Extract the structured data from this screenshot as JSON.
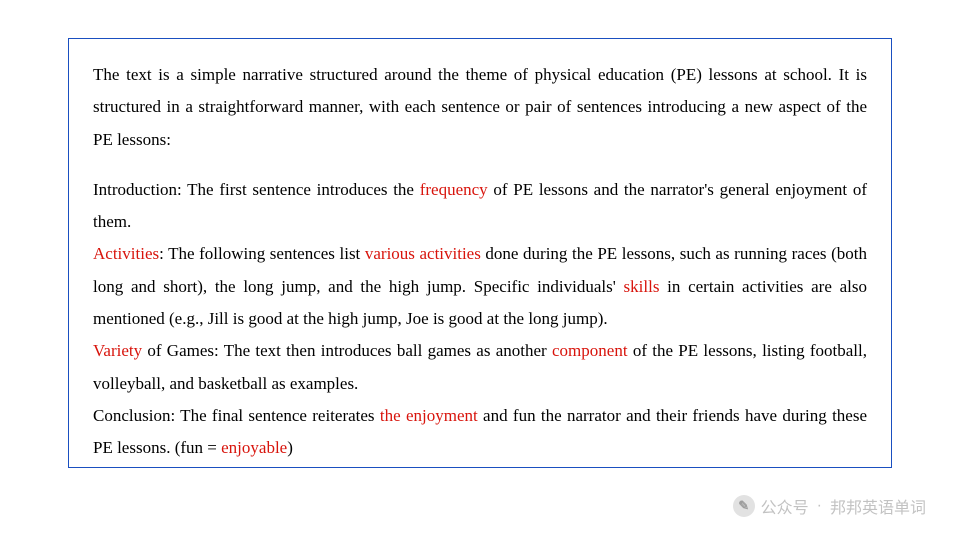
{
  "intro": {
    "t1": "The text is a simple narrative structured around the theme of physical education (PE) lessons at school. It is structured in a straightforward manner, with each sentence or pair of sentences introducing a new aspect of the PE lessons:"
  },
  "sec1": {
    "lead": "Introduction: The first sentence introduces the ",
    "hl1": "frequency",
    "tail": " of PE lessons and the narrator's general enjoyment of them."
  },
  "sec2": {
    "hl_lead": "Activities",
    "t1": ": The following sentences list ",
    "hl2": "various activities",
    "t2": " done during the PE lessons, such as running races (both long and short), the long jump, and the high jump. Specific individuals' ",
    "hl3": "skills",
    "t3": " in certain activities are also mentioned (e.g., Jill is good at the high jump, Joe is good at the long jump)."
  },
  "sec3": {
    "hl_lead": "Variety",
    "t1": " of Games: The text then introduces ball games as another ",
    "hl2": "component",
    "t2": " of the PE lessons, listing football, volleyball, and basketball as examples."
  },
  "sec4": {
    "t1": "Conclusion: The final sentence reiterates ",
    "hl1": "the enjoyment",
    "t2": " and fun the narrator and their friends have during these PE lessons. (fun = ",
    "hl2": "enjoyable",
    "t3": ")"
  },
  "watermark": {
    "label1": "公众号",
    "dot": "·",
    "label2": "邦邦英语单词",
    "icon_glyph": "✎"
  },
  "colors": {
    "border": "#1a4fc0",
    "text": "#000000",
    "highlight": "#d8140c",
    "watermark": "rgba(120,120,120,0.45)"
  }
}
